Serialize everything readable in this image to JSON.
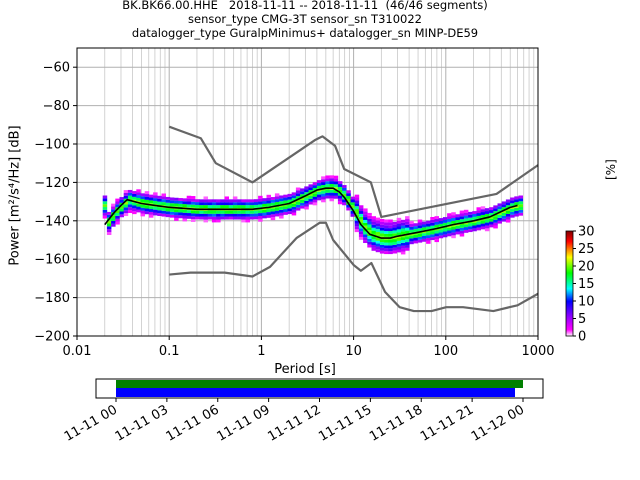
{
  "title": {
    "line1": "BK.BK66.00.HHE   2018-11-11 -- 2018-11-11  (46/46 segments)",
    "line2": "sensor_type CMG-3T sensor_sn T310022",
    "line3": "datalogger_type GuralpMinimus+ datalogger_sn MINP-DE59"
  },
  "chart_data": {
    "type": "heatmap",
    "xlabel": "Period [s]",
    "ylabel": "Power [m²/s⁴/Hz] [dB]",
    "xscale": "log",
    "xlim": [
      0.01,
      1000
    ],
    "ylim": [
      -200,
      -50
    ],
    "xticks": [
      "0.01",
      "0.1",
      "1",
      "10",
      "100",
      "1000"
    ],
    "yticks": [
      "−200",
      "−180",
      "−160",
      "−140",
      "−120",
      "−100",
      "−80",
      "−60"
    ],
    "grid": true,
    "colorbar": {
      "label": "[%]",
      "range": [
        0,
        30
      ],
      "ticks": [
        "0",
        "5",
        "10",
        "15",
        "20",
        "25",
        "30"
      ]
    },
    "mode_curve": {
      "period": [
        0.02,
        0.025,
        0.03,
        0.035,
        0.05,
        0.07,
        0.1,
        0.2,
        0.3,
        0.5,
        0.8,
        1.2,
        2,
        3,
        4,
        5,
        6,
        7,
        8,
        10,
        12,
        15,
        20,
        25,
        30,
        50,
        80,
        120,
        200,
        300,
        500,
        600
      ],
      "db": [
        -142,
        -136,
        -132,
        -129,
        -131,
        -132,
        -133,
        -134,
        -134,
        -134,
        -134,
        -133,
        -131,
        -127,
        -124,
        -123,
        -123,
        -125,
        -128,
        -135,
        -142,
        -147,
        -149,
        -149,
        -148,
        -146,
        -144,
        -142,
        -140,
        -138,
        -133,
        -132
      ]
    },
    "nlnm": {
      "period": [
        0.1,
        0.17,
        0.4,
        0.8,
        1.24,
        2.4,
        4.3,
        5.0,
        6.0,
        10.0,
        12.0,
        15.6,
        21.9,
        31.6,
        45.0,
        70.0,
        101.0,
        154.0,
        328.0,
        600.0,
        1000.0
      ],
      "db": [
        -168,
        -167,
        -167,
        -169,
        -164,
        -149,
        -141,
        -141,
        -150,
        -163,
        -166,
        -162,
        -177,
        -185,
        -187,
        -187,
        -185,
        -185,
        -187,
        -184,
        -178
      ]
    },
    "nhnm": {
      "period": [
        0.1,
        0.22,
        0.32,
        0.8,
        3.8,
        4.6,
        6.3,
        7.9,
        15.4,
        20.0,
        354.8,
        1000.0
      ],
      "db": [
        -91,
        -97,
        -110,
        -120,
        -98,
        -96,
        -101,
        -113,
        -120,
        -138,
        -126,
        -111
      ]
    }
  },
  "timeline": {
    "ticks": [
      "11-11 00",
      "11-11 03",
      "11-11 06",
      "11-11 09",
      "11-11 12",
      "11-11 15",
      "11-11 18",
      "11-11 21",
      "11-12 00"
    ],
    "data_color": "#008000",
    "used_color": "#0000ff"
  },
  "colors": {
    "model_curve": "#666666",
    "mode_curve": "#000000"
  }
}
